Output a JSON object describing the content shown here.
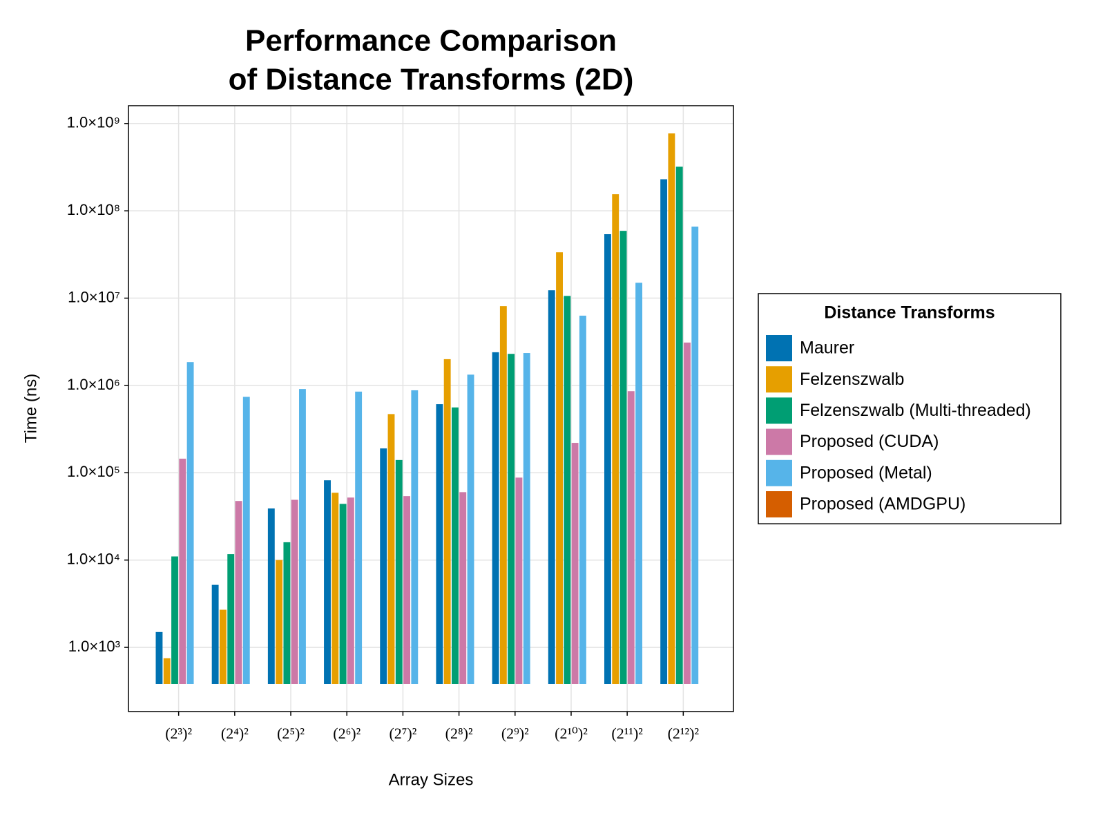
{
  "chart_data": {
    "type": "bar",
    "log_scale": true,
    "grid": true,
    "title": [
      "Performance Comparison",
      "of Distance Transforms (2D)"
    ],
    "xlabel": "Array Sizes",
    "ylabel": "Time (ns)",
    "legend_title": "Distance Transforms",
    "legend_position": "right",
    "categories": [
      "(2³)²",
      "(2⁴)²",
      "(2⁵)²",
      "(2⁶)²",
      "(2⁷)²",
      "(2⁸)²",
      "(2⁹)²",
      "(2¹⁰)²",
      "(2¹¹)²",
      "(2¹²)²"
    ],
    "series": [
      {
        "name": "Maurer",
        "color": "#0072b2",
        "values": [
          1500,
          5200,
          39000,
          82000,
          190000,
          610000,
          2400000,
          12300000,
          54000000,
          230000000
        ]
      },
      {
        "name": "Felzenszwalb",
        "color": "#e69f00",
        "values": [
          750,
          2700,
          10000,
          59000,
          470000,
          2000000,
          8100000,
          33500000,
          155000000,
          770000000
        ]
      },
      {
        "name": "Felzenszwalb (Multi-threaded)",
        "color": "#009e73",
        "values": [
          11000,
          11700,
          16000,
          44000,
          140000,
          560000,
          2300000,
          10600000,
          59000000,
          320000000
        ]
      },
      {
        "name": "Proposed (CUDA)",
        "color": "#cc79a7",
        "values": [
          145000,
          47500,
          49000,
          52000,
          54000,
          60000,
          88000,
          220000,
          860000,
          3100000
        ]
      },
      {
        "name": "Proposed (Metal)",
        "color": "#56b4e9",
        "values": [
          1850000,
          740000,
          910000,
          850000,
          880000,
          1330000,
          2350000,
          6300000,
          15000000,
          66000000
        ]
      },
      {
        "name": "Proposed (AMDGPU)",
        "color": "#d55e00",
        "values": [
          null,
          null,
          null,
          null,
          null,
          null,
          null,
          null,
          null,
          null
        ]
      }
    ],
    "ylim": [
      184,
      1600000000
    ],
    "yticks": [
      {
        "value": 1000,
        "label": "1.0×10³"
      },
      {
        "value": 10000,
        "label": "1.0×10⁴"
      },
      {
        "value": 100000,
        "label": "1.0×10⁵"
      },
      {
        "value": 1000000,
        "label": "1.0×10⁶"
      },
      {
        "value": 10000000,
        "label": "1.0×10⁷"
      },
      {
        "value": 100000000,
        "label": "1.0×10⁸"
      },
      {
        "value": 1000000000,
        "label": "1.0×10⁹"
      }
    ]
  }
}
